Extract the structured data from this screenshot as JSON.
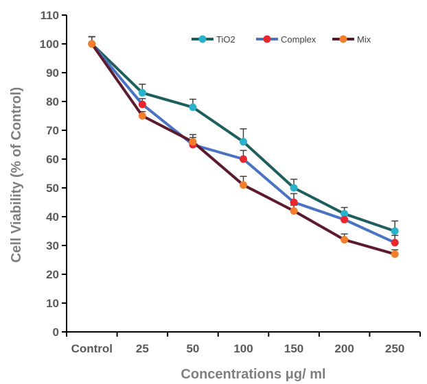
{
  "chart_data": {
    "type": "line",
    "xlabel": "Concentrations μg/ ml",
    "ylabel": "Cell  Viability (% of Control)",
    "categories": [
      "Control",
      "25",
      "50",
      "100",
      "150",
      "200",
      "250"
    ],
    "ylim": [
      0,
      110
    ],
    "yticks": [
      "0",
      "10",
      "20",
      "30",
      "40",
      "50",
      "60",
      "70",
      "80",
      "90",
      "100",
      "110"
    ],
    "grid": false,
    "legend_position": "top-right",
    "series": [
      {
        "name": "TiO2",
        "values": [
          100,
          83,
          78,
          66,
          50,
          41,
          35
        ],
        "error": [
          2.5,
          3,
          2.8,
          4.5,
          3,
          2.2,
          3.5
        ],
        "line_color": "#1f5e5e",
        "marker_color": "#29b2cc"
      },
      {
        "name": "Complex",
        "values": [
          100,
          79,
          65,
          60,
          45,
          39,
          31
        ],
        "error": [
          2.5,
          2,
          2.5,
          3,
          3,
          2,
          2.5
        ],
        "line_color": "#4a73c2",
        "marker_color": "#e8262e"
      },
      {
        "name": "Mix",
        "values": [
          100,
          75,
          66,
          51,
          42,
          32,
          27
        ],
        "error": [
          2.5,
          1.5,
          2.5,
          3,
          2,
          2,
          1.5
        ],
        "line_color": "#5c1a2e",
        "marker_color": "#f27d2a"
      }
    ]
  }
}
